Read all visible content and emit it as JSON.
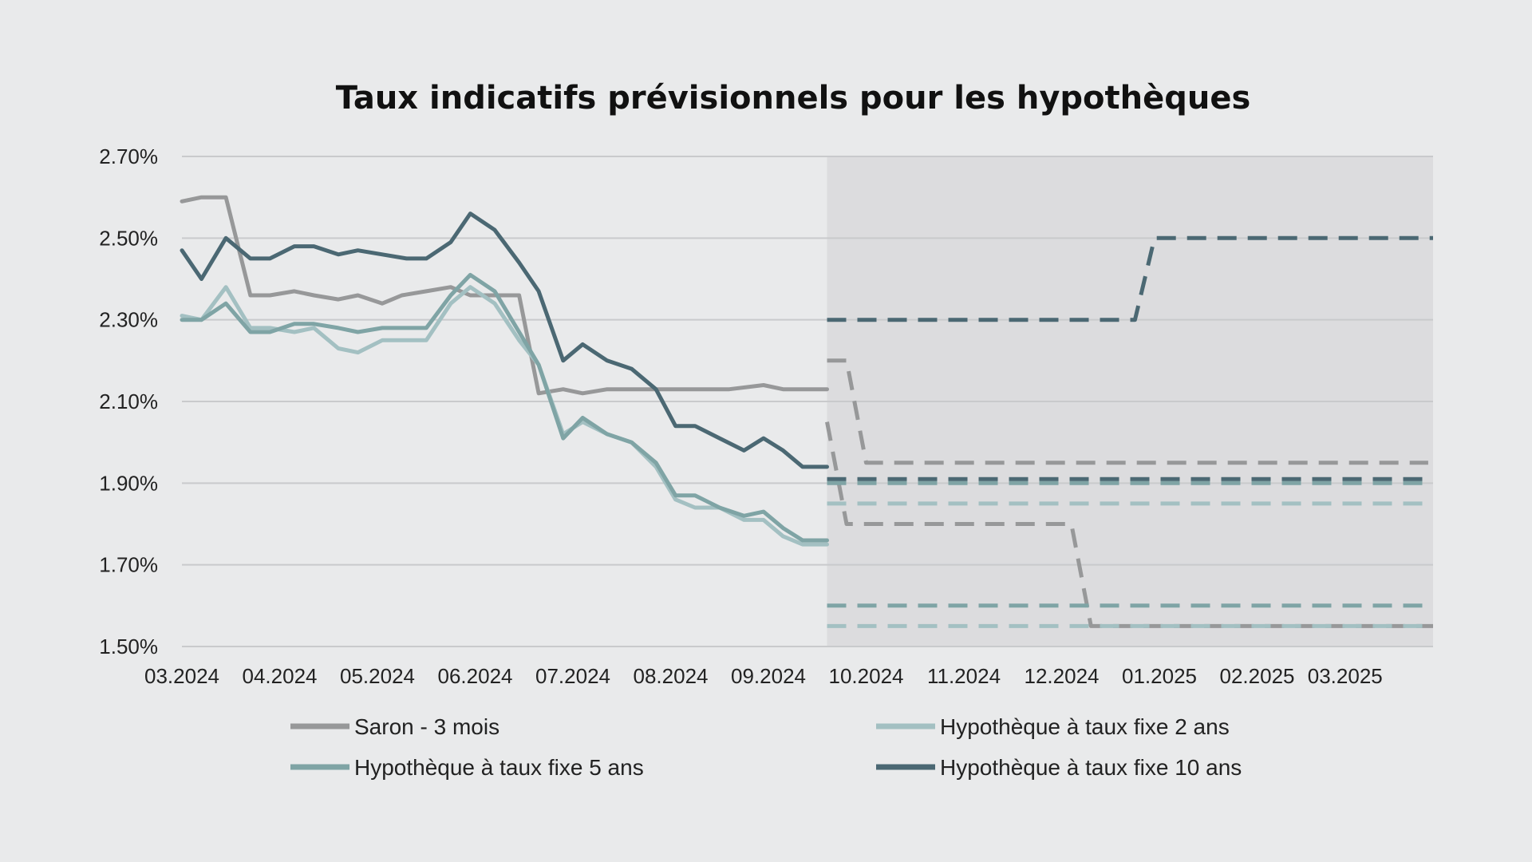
{
  "chart_data": {
    "type": "line",
    "title": "Taux indicatifs prévisionnels pour les hypothèques",
    "xlabel": "",
    "ylabel": "",
    "x_tick_labels": [
      "03.2024",
      "04.2024",
      "05.2024",
      "06.2024",
      "07.2024",
      "08.2024",
      "09.2024",
      "10.2024",
      "11.2024",
      "12.2024",
      "01.2025",
      "02.2025",
      "03.2025"
    ],
    "x_tick_positions": [
      0,
      1,
      2,
      3,
      4,
      5,
      6,
      7,
      8,
      9,
      10,
      11,
      11.9
    ],
    "x_range": [
      0,
      12.8
    ],
    "ylim": [
      1.5,
      2.7
    ],
    "y_ticks": [
      1.5,
      1.7,
      1.9,
      2.1,
      2.3,
      2.5,
      2.7
    ],
    "y_tick_labels": [
      "1.50%",
      "1.70%",
      "1.90%",
      "2.10%",
      "2.30%",
      "2.50%",
      "2.70%"
    ],
    "forecast_start": 6.6,
    "grid": true,
    "legend_position": "bottom",
    "series": [
      {
        "name": "Saron - 3 mois",
        "color": "#979899",
        "historical": [
          [
            0,
            2.59
          ],
          [
            0.2,
            2.6
          ],
          [
            0.45,
            2.6
          ],
          [
            0.7,
            2.36
          ],
          [
            0.9,
            2.36
          ],
          [
            1.15,
            2.37
          ],
          [
            1.35,
            2.36
          ],
          [
            1.6,
            2.35
          ],
          [
            1.8,
            2.36
          ],
          [
            2.05,
            2.34
          ],
          [
            2.25,
            2.36
          ],
          [
            2.5,
            2.37
          ],
          [
            2.75,
            2.38
          ],
          [
            2.95,
            2.36
          ],
          [
            3.2,
            2.36
          ],
          [
            3.45,
            2.36
          ],
          [
            3.65,
            2.12
          ],
          [
            3.9,
            2.13
          ],
          [
            4.1,
            2.12
          ],
          [
            4.35,
            2.13
          ],
          [
            5.6,
            2.13
          ],
          [
            5.95,
            2.14
          ],
          [
            6.15,
            2.13
          ],
          [
            6.6,
            2.13
          ]
        ],
        "forecast": [
          [
            [
              6.6,
              2.2
            ],
            [
              6.8,
              2.2
            ],
            [
              7.0,
              1.95
            ],
            [
              12.75,
              1.95
            ]
          ],
          [
            [
              6.6,
              2.05
            ],
            [
              6.8,
              1.8
            ],
            [
              9.1,
              1.8
            ],
            [
              9.3,
              1.55
            ],
            [
              12.8,
              1.55
            ]
          ]
        ]
      },
      {
        "name": "Hypothèque à taux fixe 2 ans",
        "color": "#a3c0c2",
        "historical": [
          [
            0,
            2.31
          ],
          [
            0.2,
            2.3
          ],
          [
            0.45,
            2.38
          ],
          [
            0.7,
            2.28
          ],
          [
            0.9,
            2.28
          ],
          [
            1.15,
            2.27
          ],
          [
            1.35,
            2.28
          ],
          [
            1.6,
            2.23
          ],
          [
            1.8,
            2.22
          ],
          [
            2.05,
            2.25
          ],
          [
            2.5,
            2.25
          ],
          [
            2.75,
            2.34
          ],
          [
            2.95,
            2.38
          ],
          [
            3.2,
            2.34
          ],
          [
            3.45,
            2.25
          ],
          [
            3.65,
            2.19
          ],
          [
            3.9,
            2.02
          ],
          [
            4.1,
            2.05
          ],
          [
            4.35,
            2.02
          ],
          [
            4.6,
            2.0
          ],
          [
            4.85,
            1.94
          ],
          [
            5.05,
            1.86
          ],
          [
            5.25,
            1.84
          ],
          [
            5.5,
            1.84
          ],
          [
            5.75,
            1.81
          ],
          [
            5.95,
            1.81
          ],
          [
            6.15,
            1.77
          ],
          [
            6.35,
            1.75
          ],
          [
            6.6,
            1.75
          ]
        ],
        "forecast": [
          [
            [
              6.6,
              1.85
            ],
            [
              12.8,
              1.85
            ]
          ],
          [
            [
              6.6,
              1.55
            ],
            [
              12.8,
              1.55
            ]
          ]
        ]
      },
      {
        "name": "Hypothèque à taux fixe 5 ans",
        "color": "#7fa4a5",
        "historical": [
          [
            0,
            2.3
          ],
          [
            0.2,
            2.3
          ],
          [
            0.45,
            2.34
          ],
          [
            0.7,
            2.27
          ],
          [
            0.9,
            2.27
          ],
          [
            1.15,
            2.29
          ],
          [
            1.35,
            2.29
          ],
          [
            1.6,
            2.28
          ],
          [
            1.8,
            2.27
          ],
          [
            2.05,
            2.28
          ],
          [
            2.5,
            2.28
          ],
          [
            2.75,
            2.36
          ],
          [
            2.95,
            2.41
          ],
          [
            3.2,
            2.37
          ],
          [
            3.45,
            2.27
          ],
          [
            3.65,
            2.19
          ],
          [
            3.9,
            2.01
          ],
          [
            4.1,
            2.06
          ],
          [
            4.35,
            2.02
          ],
          [
            4.6,
            2.0
          ],
          [
            4.85,
            1.95
          ],
          [
            5.05,
            1.87
          ],
          [
            5.25,
            1.87
          ],
          [
            5.5,
            1.84
          ],
          [
            5.75,
            1.82
          ],
          [
            5.95,
            1.83
          ],
          [
            6.15,
            1.79
          ],
          [
            6.35,
            1.76
          ],
          [
            6.6,
            1.76
          ]
        ],
        "forecast": [
          [
            [
              6.6,
              1.9
            ],
            [
              12.8,
              1.9
            ]
          ],
          [
            [
              6.6,
              1.6
            ],
            [
              12.8,
              1.6
            ]
          ]
        ]
      },
      {
        "name": "Hypothèque à taux fixe 10 ans",
        "color": "#4b6873",
        "historical": [
          [
            0,
            2.47
          ],
          [
            0.2,
            2.4
          ],
          [
            0.45,
            2.5
          ],
          [
            0.7,
            2.45
          ],
          [
            0.9,
            2.45
          ],
          [
            1.15,
            2.48
          ],
          [
            1.35,
            2.48
          ],
          [
            1.6,
            2.46
          ],
          [
            1.8,
            2.47
          ],
          [
            2.05,
            2.46
          ],
          [
            2.3,
            2.45
          ],
          [
            2.5,
            2.45
          ],
          [
            2.75,
            2.49
          ],
          [
            2.95,
            2.56
          ],
          [
            3.2,
            2.52
          ],
          [
            3.45,
            2.44
          ],
          [
            3.65,
            2.37
          ],
          [
            3.9,
            2.2
          ],
          [
            4.1,
            2.24
          ],
          [
            4.35,
            2.2
          ],
          [
            4.6,
            2.18
          ],
          [
            4.85,
            2.13
          ],
          [
            5.05,
            2.04
          ],
          [
            5.25,
            2.04
          ],
          [
            5.5,
            2.01
          ],
          [
            5.75,
            1.98
          ],
          [
            5.95,
            2.01
          ],
          [
            6.15,
            1.98
          ],
          [
            6.35,
            1.94
          ],
          [
            6.6,
            1.94
          ]
        ],
        "forecast": [
          [
            [
              6.6,
              2.3
            ],
            [
              9.75,
              2.3
            ],
            [
              9.95,
              2.5
            ],
            [
              12.8,
              2.5
            ]
          ],
          [
            [
              6.6,
              1.91
            ],
            [
              12.8,
              1.91
            ]
          ]
        ]
      }
    ]
  }
}
